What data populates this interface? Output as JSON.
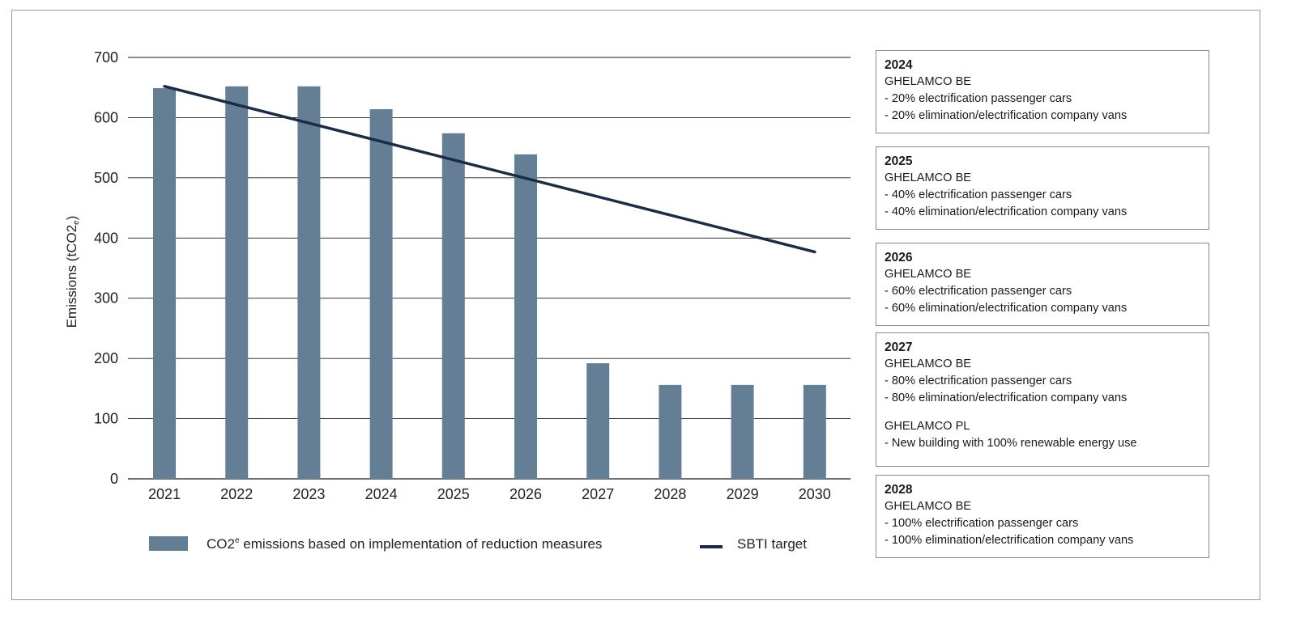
{
  "chart_data": {
    "type": "bar",
    "categories": [
      "2021",
      "2022",
      "2023",
      "2024",
      "2025",
      "2026",
      "2027",
      "2028",
      "2029",
      "2030"
    ],
    "series": [
      {
        "name": "CO2e emissions based on implementation of reduction measures",
        "type": "bar",
        "values": [
          649,
          652,
          652,
          614,
          574,
          539,
          192,
          156,
          156,
          156
        ],
        "color": "#647f95"
      },
      {
        "name": "SBTI target",
        "type": "line",
        "points": [
          [
            2021,
            652
          ],
          [
            2030,
            377
          ]
        ],
        "color": "#1c2c45"
      }
    ],
    "ylabel": "Emissions (tCO2e)",
    "ylabel_main": "Emissions (tCO2",
    "ylabel_sub": "e",
    "ylabel_close": ")",
    "ylim": [
      0,
      700
    ],
    "yticks": [
      "0",
      "100",
      "200",
      "300",
      "400",
      "500",
      "600",
      "700"
    ],
    "grid": true,
    "legend": {
      "bar_text_main": "CO2",
      "bar_text_sup": "e",
      "bar_text_rest": " emissions based on implementation of reduction measures",
      "line_text": "SBTI target",
      "position": "bottom"
    }
  },
  "notes": [
    {
      "year": "2024",
      "lines": [
        "GHELAMCO BE",
        "- 20% electrification passenger cars",
        "- 20% elimination/electrification company vans"
      ]
    },
    {
      "year": "2025",
      "lines": [
        "GHELAMCO BE",
        "- 40% electrification passenger cars",
        "- 40% elimination/electrification company vans"
      ]
    },
    {
      "year": "2026",
      "lines": [
        "GHELAMCO BE",
        "- 60% electrification passenger cars",
        "- 60% elimination/electrification company vans"
      ]
    },
    {
      "year": "2027",
      "lines": [
        "GHELAMCO BE",
        "- 80% electrification passenger cars",
        "- 80% elimination/electrification company vans"
      ],
      "lines2": [
        "GHELAMCO PL",
        "- New building with 100% renewable energy use"
      ]
    },
    {
      "year": "2028",
      "lines": [
        "GHELAMCO BE",
        "- 100% electrification passenger cars",
        "- 100% elimination/electrification company vans"
      ]
    }
  ]
}
